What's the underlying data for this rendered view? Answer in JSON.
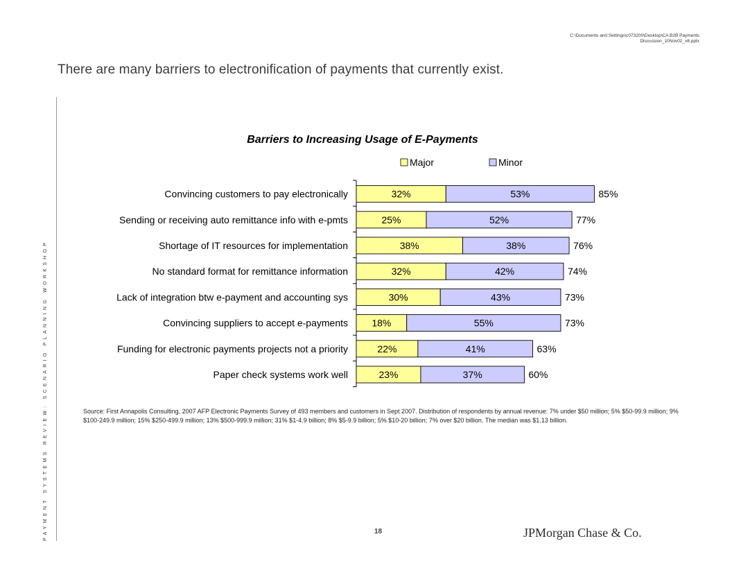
{
  "file_path": "C:\\Documents and Settings\\c073200\\Desktop\\CA B2B Payments Discussion_10Nov02_v8.pptx",
  "slide_title": "There are many barriers to electronification of payments that currently exist.",
  "vertical_label": "PAYMENT SYSTEMS REVIEW: SCENARIO PLANNING WORKSHOP",
  "chart_data": {
    "type": "bar",
    "orientation": "horizontal",
    "stacked": true,
    "title": "Barriers to Increasing Usage of E-Payments",
    "categories": [
      "Convincing customers to pay electronically",
      "Sending or receiving auto remittance info with e-pmts",
      "Shortage of IT resources for implementation",
      "No standard format for remittance information",
      "Lack of integration btw e-payment and accounting sys",
      "Convincing suppliers to accept e-payments",
      "Funding for electronic payments projects not a priority",
      "Paper check systems work well"
    ],
    "series": [
      {
        "name": "Major",
        "color": "#ffff99",
        "values": [
          32,
          25,
          38,
          32,
          30,
          18,
          22,
          23
        ],
        "labels": [
          "32%",
          "25%",
          "38%",
          "32%",
          "30%",
          "18%",
          "22%",
          "23%"
        ]
      },
      {
        "name": "Minor",
        "color": "#ccccff",
        "values": [
          53,
          52,
          38,
          42,
          43,
          55,
          41,
          37
        ],
        "labels": [
          "53%",
          "52%",
          "38%",
          "42%",
          "43%",
          "55%",
          "41%",
          "37%"
        ]
      }
    ],
    "totals": [
      85,
      77,
      76,
      74,
      73,
      73,
      63,
      60
    ],
    "total_labels": [
      "85%",
      "77%",
      "76%",
      "74%",
      "73%",
      "73%",
      "63%",
      "60%"
    ],
    "xlim": [
      0,
      100
    ],
    "legend_position": "top",
    "grid": false
  },
  "source_text": "Source: First Annapolis Consulting, 2007 AFP Electronic Payments Survey of 493 members and customers in Sept 2007. Distribution of respondents by annual revenue: 7% under $50 million; 5% $50-99.9 million; 9% $100-249.9 million; 15% $250-499.9 million; 13% $500-999.9 million; 31% $1-4.9 billion; 8% $5-9.9 billion; 5% $10-20 billion; 7% over $20 billion. The median was $1.13 billion.",
  "page_number": "18",
  "logo": "JPMorgan Chase & Co."
}
